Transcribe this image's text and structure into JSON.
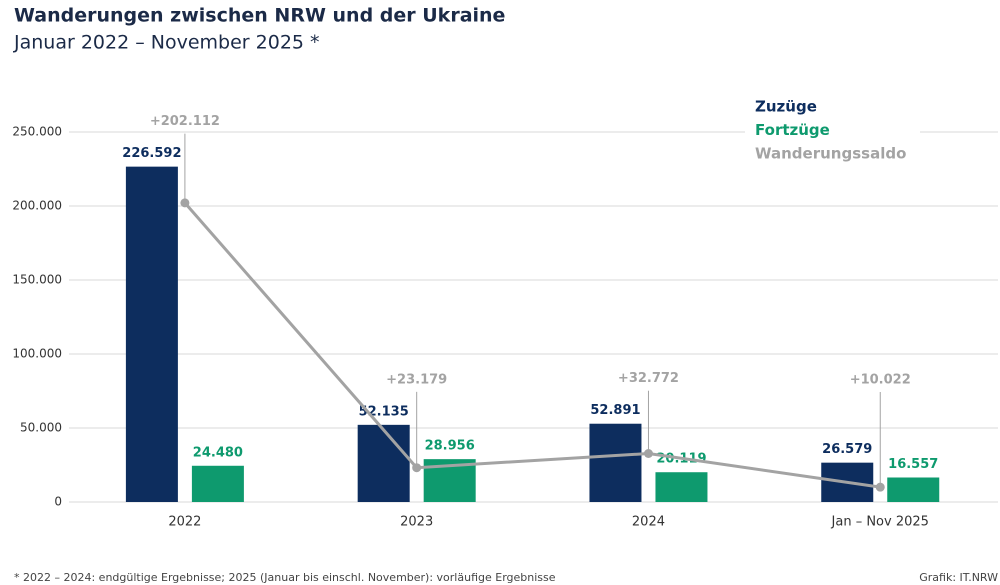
{
  "chart_data": {
    "type": "bar",
    "title": "Wanderungen zwischen NRW und der Ukraine",
    "subtitle": "Januar 2022 – November 2025 *",
    "footnote": "* 2022 – 2024: endgültige Ergebnisse; 2025 (Januar bis einschl. November): vorläufige Ergebnisse",
    "source": "Grafik: IT.NRW",
    "categories": [
      "2022",
      "2023",
      "2024",
      "Jan – Nov 2025"
    ],
    "series": [
      {
        "name": "Zuzüge",
        "color": "#0d2d5e",
        "type": "bar",
        "values": [
          226592,
          52135,
          52891,
          26579
        ],
        "value_labels": [
          "226.592",
          "52.135",
          "52.891",
          "26.579"
        ]
      },
      {
        "name": "Fortzüge",
        "color": "#0e9a6e",
        "type": "bar",
        "values": [
          24480,
          28956,
          20119,
          16557
        ],
        "value_labels": [
          "24.480",
          "28.956",
          "20.119",
          "16.557"
        ]
      },
      {
        "name": "Wanderungssaldo",
        "color": "#a3a3a3",
        "type": "line",
        "values": [
          202112,
          23179,
          32772,
          10022
        ],
        "value_labels": [
          "+202.112",
          "+23.179",
          "+32.772",
          "+10.022"
        ]
      }
    ],
    "ylim": [
      0,
      250000
    ],
    "yticks": [
      0,
      {
        "value": 50000,
        "label": "50.000"
      },
      {
        "value": 100000,
        "label": "100.000"
      },
      {
        "value": 150000,
        "label": "150.000"
      },
      {
        "value": 200000,
        "label": "200.000"
      },
      {
        "value": 250000,
        "label": "250.000"
      }
    ],
    "grid": true,
    "legend": "top-right"
  }
}
